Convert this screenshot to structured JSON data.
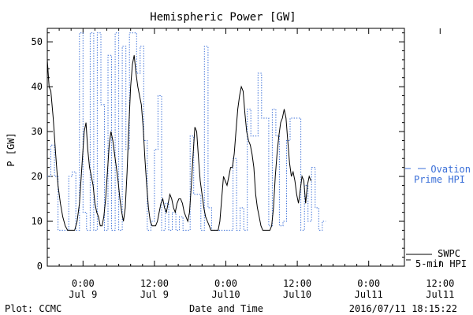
{
  "chart_data": {
    "type": "line",
    "title": "Hemispheric Power [GW]",
    "ylabel": "P [GW]",
    "xlabel": "Date and Time",
    "ylim": [
      0,
      53
    ],
    "xlim_hours": [
      -6,
      54
    ],
    "yticks": [
      0,
      10,
      20,
      30,
      40,
      50
    ],
    "xticks": [
      {
        "x": 0,
        "line1": "0:00",
        "line2": "Jul 9"
      },
      {
        "x": 12,
        "line1": "12:00",
        "line2": "Jul 9"
      },
      {
        "x": 24,
        "line1": "0:00",
        "line2": "Jul10"
      },
      {
        "x": 36,
        "line1": "12:00",
        "line2": "Jul10"
      },
      {
        "x": 48,
        "line1": "0:00",
        "line2": "Jul11"
      },
      {
        "x": 60,
        "line1": "12:00",
        "line2": "Jul11"
      }
    ],
    "series": [
      {
        "name": "Ovation Prime HPI",
        "style": "dotted-step",
        "color": "#3a6fd8",
        "points": [
          [
            -6,
            20
          ],
          [
            -5.4,
            27
          ],
          [
            -4.8,
            20
          ],
          [
            -4.2,
            8
          ],
          [
            -3.6,
            8
          ],
          [
            -3.0,
            8
          ],
          [
            -2.4,
            20
          ],
          [
            -1.8,
            21
          ],
          [
            -1.2,
            8
          ],
          [
            -0.6,
            52
          ],
          [
            0,
            12
          ],
          [
            0.6,
            8
          ],
          [
            1.2,
            52
          ],
          [
            1.8,
            8
          ],
          [
            2.4,
            52
          ],
          [
            3.0,
            36
          ],
          [
            3.6,
            8
          ],
          [
            4.2,
            47
          ],
          [
            4.8,
            8
          ],
          [
            5.4,
            52
          ],
          [
            6.0,
            8
          ],
          [
            6.6,
            49
          ],
          [
            7.2,
            26
          ],
          [
            7.8,
            52
          ],
          [
            8.4,
            52
          ],
          [
            9.0,
            43
          ],
          [
            9.6,
            49
          ],
          [
            10.2,
            28
          ],
          [
            10.8,
            8
          ],
          [
            11.4,
            10
          ],
          [
            12.0,
            26
          ],
          [
            12.6,
            38
          ],
          [
            13.2,
            8
          ],
          [
            13.8,
            14
          ],
          [
            14.4,
            8
          ],
          [
            15.0,
            12
          ],
          [
            15.6,
            8
          ],
          [
            16.2,
            11
          ],
          [
            16.8,
            8
          ],
          [
            17.4,
            8
          ],
          [
            18.0,
            29
          ],
          [
            18.6,
            16
          ],
          [
            19.2,
            16
          ],
          [
            19.8,
            8
          ],
          [
            20.4,
            49
          ],
          [
            21.0,
            13
          ],
          [
            21.6,
            8
          ],
          [
            22.2,
            8
          ],
          [
            22.8,
            8
          ],
          [
            23.4,
            8
          ],
          [
            24.0,
            8
          ],
          [
            24.6,
            8
          ],
          [
            25.2,
            24
          ],
          [
            25.8,
            8
          ],
          [
            26.4,
            13
          ],
          [
            27.0,
            8
          ],
          [
            27.6,
            35
          ],
          [
            28.2,
            29
          ],
          [
            28.8,
            29
          ],
          [
            29.4,
            43
          ],
          [
            30.0,
            33
          ],
          [
            30.6,
            33
          ],
          [
            31.2,
            9
          ],
          [
            31.8,
            35
          ],
          [
            32.4,
            29
          ],
          [
            33.0,
            9
          ],
          [
            33.6,
            10
          ],
          [
            34.2,
            28
          ],
          [
            34.8,
            33
          ],
          [
            35.4,
            33
          ],
          [
            36.0,
            33
          ],
          [
            36.6,
            8
          ],
          [
            37.2,
            18
          ],
          [
            37.8,
            10
          ],
          [
            38.4,
            22
          ],
          [
            39.0,
            13
          ],
          [
            39.6,
            8
          ],
          [
            40.2,
            10
          ]
        ]
      },
      {
        "name": "SWPC 5-min HPI",
        "style": "solid",
        "color": "#000000",
        "points": [
          [
            -6,
            46
          ],
          [
            -5.7,
            40
          ],
          [
            -5.4,
            39
          ],
          [
            -5.0,
            33
          ],
          [
            -4.6,
            25
          ],
          [
            -4.2,
            18
          ],
          [
            -3.8,
            14
          ],
          [
            -3.4,
            11
          ],
          [
            -3.0,
            9
          ],
          [
            -2.6,
            8
          ],
          [
            -2.2,
            8
          ],
          [
            -1.8,
            8
          ],
          [
            -1.4,
            8
          ],
          [
            -1.0,
            10
          ],
          [
            -0.6,
            14
          ],
          [
            -0.2,
            22
          ],
          [
            0.2,
            30
          ],
          [
            0.5,
            32
          ],
          [
            0.8,
            26
          ],
          [
            1.1,
            22
          ],
          [
            1.4,
            20
          ],
          [
            1.7,
            18
          ],
          [
            2.0,
            14
          ],
          [
            2.3,
            12
          ],
          [
            2.6,
            11
          ],
          [
            2.9,
            9
          ],
          [
            3.2,
            9
          ],
          [
            3.5,
            11
          ],
          [
            3.8,
            15
          ],
          [
            4.1,
            21
          ],
          [
            4.4,
            27
          ],
          [
            4.7,
            30
          ],
          [
            5.0,
            28
          ],
          [
            5.3,
            25
          ],
          [
            5.6,
            22
          ],
          [
            5.9,
            19
          ],
          [
            6.2,
            15
          ],
          [
            6.5,
            12
          ],
          [
            6.8,
            10
          ],
          [
            7.1,
            13
          ],
          [
            7.4,
            21
          ],
          [
            7.7,
            31
          ],
          [
            8.0,
            40
          ],
          [
            8.3,
            45
          ],
          [
            8.6,
            47
          ],
          [
            8.9,
            43
          ],
          [
            9.2,
            40
          ],
          [
            9.5,
            38
          ],
          [
            9.8,
            36
          ],
          [
            10.1,
            31
          ],
          [
            10.4,
            24
          ],
          [
            10.7,
            18
          ],
          [
            11.0,
            13
          ],
          [
            11.3,
            10
          ],
          [
            11.6,
            9
          ],
          [
            11.9,
            9
          ],
          [
            12.2,
            9
          ],
          [
            12.5,
            10
          ],
          [
            12.8,
            12
          ],
          [
            13.1,
            14
          ],
          [
            13.4,
            15
          ],
          [
            13.7,
            13
          ],
          [
            14.0,
            12
          ],
          [
            14.3,
            14
          ],
          [
            14.6,
            16
          ],
          [
            14.9,
            15
          ],
          [
            15.2,
            13
          ],
          [
            15.5,
            12
          ],
          [
            15.8,
            14
          ],
          [
            16.1,
            15
          ],
          [
            16.4,
            15
          ],
          [
            16.7,
            14
          ],
          [
            17.0,
            12
          ],
          [
            17.3,
            11
          ],
          [
            17.6,
            10
          ],
          [
            17.9,
            12
          ],
          [
            18.2,
            18
          ],
          [
            18.5,
            25
          ],
          [
            18.8,
            31
          ],
          [
            19.1,
            30
          ],
          [
            19.4,
            24
          ],
          [
            19.7,
            19
          ],
          [
            20.0,
            16
          ],
          [
            20.3,
            13
          ],
          [
            20.6,
            11
          ],
          [
            20.9,
            10
          ],
          [
            21.2,
            9
          ],
          [
            21.5,
            8
          ],
          [
            21.8,
            8
          ],
          [
            22.1,
            8
          ],
          [
            22.4,
            8
          ],
          [
            22.7,
            8
          ],
          [
            23.0,
            10
          ],
          [
            23.3,
            15
          ],
          [
            23.6,
            20
          ],
          [
            23.9,
            19
          ],
          [
            24.2,
            18
          ],
          [
            24.5,
            20
          ],
          [
            24.8,
            22
          ],
          [
            25.1,
            22
          ],
          [
            25.4,
            25
          ],
          [
            25.7,
            30
          ],
          [
            26.0,
            35
          ],
          [
            26.3,
            38
          ],
          [
            26.6,
            40
          ],
          [
            26.9,
            39
          ],
          [
            27.2,
            34
          ],
          [
            27.5,
            30
          ],
          [
            27.8,
            28
          ],
          [
            28.1,
            27
          ],
          [
            28.4,
            25
          ],
          [
            28.7,
            22
          ],
          [
            29.0,
            16
          ],
          [
            29.3,
            13
          ],
          [
            29.6,
            11
          ],
          [
            29.9,
            9
          ],
          [
            30.2,
            8
          ],
          [
            30.5,
            8
          ],
          [
            30.8,
            8
          ],
          [
            31.1,
            8
          ],
          [
            31.4,
            8
          ],
          [
            31.7,
            9
          ],
          [
            32.0,
            13
          ],
          [
            32.3,
            20
          ],
          [
            32.6,
            25
          ],
          [
            32.9,
            29
          ],
          [
            33.2,
            32
          ],
          [
            33.5,
            33
          ],
          [
            33.8,
            35
          ],
          [
            34.1,
            33
          ],
          [
            34.4,
            28
          ],
          [
            34.7,
            23
          ],
          [
            35.0,
            20
          ],
          [
            35.3,
            21
          ],
          [
            35.6,
            19
          ],
          [
            35.9,
            16
          ],
          [
            36.2,
            14
          ],
          [
            36.5,
            17
          ],
          [
            36.8,
            20
          ],
          [
            37.1,
            19
          ],
          [
            37.4,
            14
          ],
          [
            37.7,
            18
          ],
          [
            38.0,
            20
          ],
          [
            38.3,
            19
          ]
        ]
      }
    ],
    "legend": [
      {
        "series": "Ovation Prime HPI",
        "line1": "Ovation",
        "line2": "Prime HPI",
        "color": "#3a6fd8"
      },
      {
        "series": "SWPC 5-min HPI",
        "line1": "SWPC",
        "line2": "5-min HPI",
        "color": "#000000"
      }
    ],
    "legend_placement": "right",
    "grid": false
  },
  "footer": {
    "left": "Plot: CCMC",
    "center": "Date and Time",
    "right": "2016/07/11 18:15:22"
  }
}
